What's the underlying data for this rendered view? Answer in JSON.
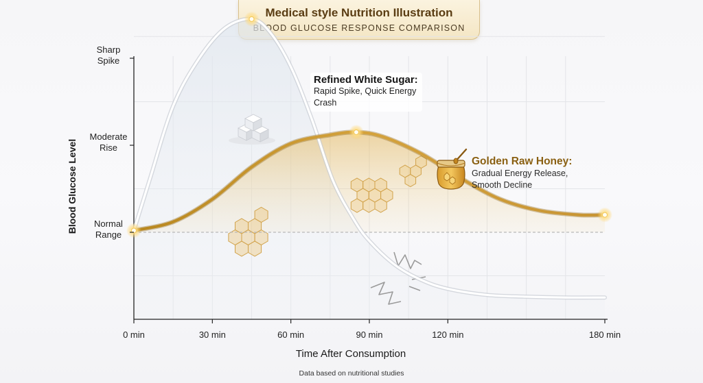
{
  "header": {
    "title": "Medical style Nutrition Illustration",
    "subtitle": "BLOOD GLUCOSE RESPONSE COMPARISON"
  },
  "annotations": {
    "sugar": {
      "title": "Refined White Sugar:",
      "line1": "Rapid Spike, Quick Energy",
      "line2": "Crash"
    },
    "honey": {
      "title": "Golden Raw Honey:",
      "line1": "Gradual Energy Release,",
      "line2": "Smooth Decline"
    }
  },
  "source_note": "Data based on nutritional studies",
  "colors": {
    "sugar_line": "#ffffff",
    "honey_line": "#c9962f",
    "honey_fill": "#e8c277",
    "accent_text": "#8a6012",
    "normal_range_line": "#b8b8b8"
  },
  "icons": [
    "sugar-cubes-icon",
    "honey-jar-icon",
    "honeycomb-icon",
    "crash-zigzag-icon"
  ],
  "chart_data": {
    "type": "line",
    "title": "",
    "xlabel": "Time After Consumption",
    "ylabel": "Blood Glucose Level",
    "x_unit": "min",
    "xlim": [
      0,
      180
    ],
    "ylim": [
      0,
      3
    ],
    "x_ticks": [
      0,
      30,
      60,
      90,
      120,
      180
    ],
    "x_tick_labels": [
      "0 min",
      "30 min",
      "60 min",
      "90 min",
      "120 min",
      "180 min"
    ],
    "y_ticks": [
      1,
      2,
      3
    ],
    "y_tick_labels": [
      [
        "Normal",
        "Range"
      ],
      [
        "Moderate",
        "Rise"
      ],
      [
        "Sharp",
        "Spike"
      ]
    ],
    "reference_line": {
      "y": 1,
      "label": "Normal Range"
    },
    "grid": true,
    "series": [
      {
        "name": "Refined White Sugar",
        "points": [
          [
            0,
            1.02
          ],
          [
            6,
            1.6
          ],
          [
            15,
            2.45
          ],
          [
            25,
            3.0
          ],
          [
            35,
            3.35
          ],
          [
            45,
            3.45
          ],
          [
            52,
            3.3
          ],
          [
            60,
            2.9
          ],
          [
            68,
            2.3
          ],
          [
            76,
            1.6
          ],
          [
            84,
            1.15
          ],
          [
            90,
            0.9
          ],
          [
            100,
            0.62
          ],
          [
            110,
            0.45
          ],
          [
            120,
            0.35
          ],
          [
            135,
            0.28
          ],
          [
            150,
            0.26
          ],
          [
            165,
            0.25
          ],
          [
            180,
            0.25
          ]
        ]
      },
      {
        "name": "Golden Raw Honey",
        "points": [
          [
            0,
            1.02
          ],
          [
            15,
            1.12
          ],
          [
            30,
            1.38
          ],
          [
            45,
            1.75
          ],
          [
            60,
            2.02
          ],
          [
            75,
            2.12
          ],
          [
            85,
            2.15
          ],
          [
            95,
            2.1
          ],
          [
            110,
            1.9
          ],
          [
            125,
            1.62
          ],
          [
            140,
            1.38
          ],
          [
            155,
            1.25
          ],
          [
            170,
            1.2
          ],
          [
            180,
            1.2
          ]
        ]
      }
    ],
    "highlighted_points": [
      {
        "series": "Refined White Sugar",
        "x": 45,
        "y": 3.45
      },
      {
        "series": "Golden Raw Honey",
        "x": 85,
        "y": 2.15
      },
      {
        "series": "Golden Raw Honey",
        "x": 0,
        "y": 1.02
      },
      {
        "series": "Golden Raw Honey",
        "x": 180,
        "y": 1.2
      }
    ]
  }
}
